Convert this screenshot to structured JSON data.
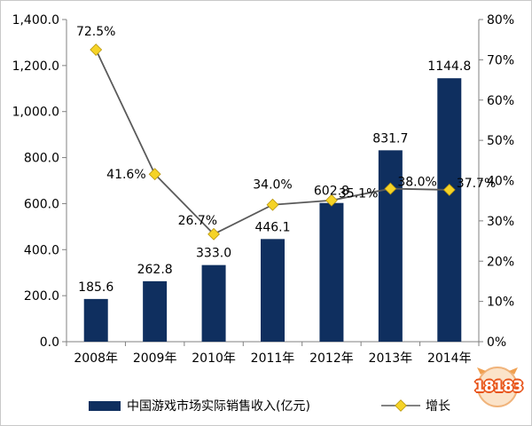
{
  "chart_data": {
    "type": "bar+line",
    "categories": [
      "2008年",
      "2009年",
      "2010年",
      "2011年",
      "2012年",
      "2013年",
      "2014年"
    ],
    "series": [
      {
        "name": "中国游戏市场实际销售收入(亿元)",
        "type": "bar",
        "axis": "left",
        "values": [
          185.6,
          262.8,
          333.0,
          446.1,
          602.8,
          831.7,
          1144.8
        ],
        "labels": [
          "185.6",
          "262.8",
          "333.0",
          "446.1",
          "602.8",
          "831.7",
          "1144.8"
        ],
        "color": "#0f2f5f"
      },
      {
        "name": "增长",
        "type": "line",
        "axis": "right",
        "values": [
          72.5,
          41.6,
          26.7,
          34.0,
          35.1,
          38.0,
          37.7
        ],
        "labels": [
          "72.5%",
          "41.6%",
          "26.7%",
          "34.0%",
          "35.1%",
          "38.0%",
          "37.7%"
        ],
        "line_color": "#5a5a5a",
        "marker_color": "#f5d327"
      }
    ],
    "y_left": {
      "min": 0,
      "max": 1400,
      "step": 200,
      "tick_labels": [
        "0.0",
        "200.0",
        "400.0",
        "600.0",
        "800.0",
        "1,000.0",
        "1,200.0",
        "1,400.0"
      ]
    },
    "y_right": {
      "min": 0,
      "max": 80,
      "step": 10,
      "tick_labels": [
        "0%",
        "10%",
        "20%",
        "30%",
        "40%",
        "50%",
        "60%",
        "70%",
        "80%"
      ]
    },
    "grid": false,
    "legend_position": "bottom"
  },
  "watermark": {
    "text": "18183"
  }
}
